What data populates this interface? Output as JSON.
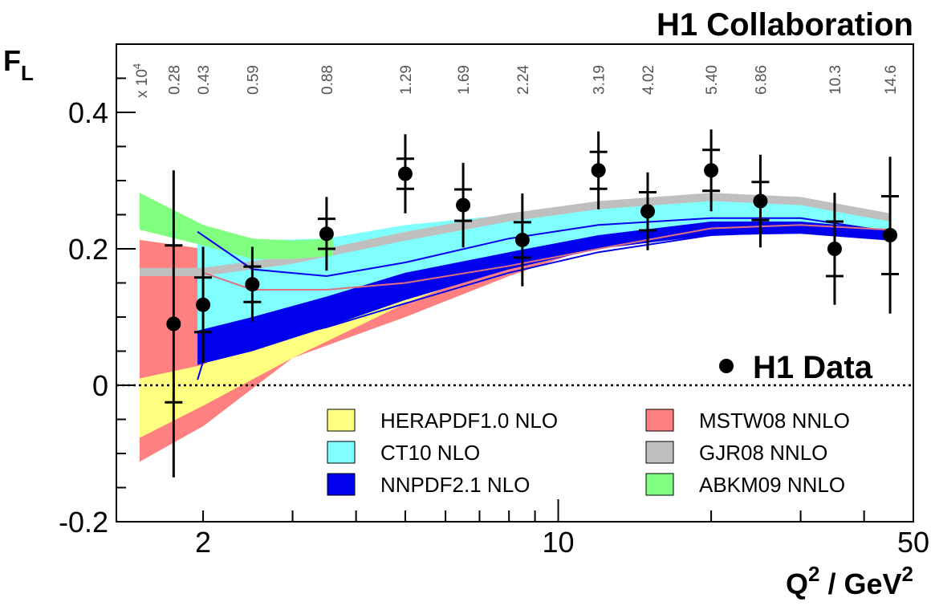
{
  "collaboration": "H1 Collaboration",
  "y_label": {
    "main": "F",
    "sub": "L"
  },
  "x_label": {
    "q": "Q",
    "q_sup": "2",
    "mid": " / GeV",
    "gev_sup": "2"
  },
  "x_scale_header": {
    "prefix": "x 10",
    "exp": "4"
  },
  "colors": {
    "HERAPDF": "#ffff80",
    "CT10": "#80ffff",
    "NNPDF": "#0000ee",
    "MSTW": "#ff8080",
    "GJR": "#bfbfbf",
    "ABKM": "#80ff80",
    "data": "#000000"
  },
  "chart_data": {
    "type": "scatter",
    "xscale": "log",
    "xlim": [
      1.35,
      50
    ],
    "ylim": [
      -0.2,
      0.5
    ],
    "grid": false,
    "xlabel": "Q^2 / GeV^2",
    "ylabel": "F_L",
    "x_ticks": [
      {
        "v": 2,
        "label": "2"
      },
      {
        "v": 10,
        "label": "10"
      },
      {
        "v": 50,
        "label": "50"
      }
    ],
    "y_ticks": [
      {
        "v": -0.2,
        "label": "-0.2"
      },
      {
        "v": 0,
        "label": "0"
      },
      {
        "v": 0.2,
        "label": "0.2"
      },
      {
        "v": 0.4,
        "label": "0.4"
      }
    ],
    "x_values_labels": [
      "0.28",
      "0.43",
      "0.59",
      "0.88",
      "1.29",
      "1.69",
      "2.24",
      "3.19",
      "4.02",
      "5.40",
      "6.86",
      "10.3",
      "14.6"
    ],
    "data_series": {
      "name": "H1 Data",
      "points": [
        {
          "q2": 1.75,
          "fl": 0.09,
          "stat": 0.115,
          "tot": 0.225
        },
        {
          "q2": 2.0,
          "fl": 0.118,
          "stat": 0.04,
          "tot": 0.085
        },
        {
          "q2": 2.5,
          "fl": 0.148,
          "stat": 0.026,
          "tot": 0.055
        },
        {
          "q2": 3.5,
          "fl": 0.222,
          "stat": 0.022,
          "tot": 0.054
        },
        {
          "q2": 5.0,
          "fl": 0.31,
          "stat": 0.022,
          "tot": 0.058
        },
        {
          "q2": 6.5,
          "fl": 0.264,
          "stat": 0.023,
          "tot": 0.062
        },
        {
          "q2": 8.5,
          "fl": 0.213,
          "stat": 0.026,
          "tot": 0.068
        },
        {
          "q2": 12.0,
          "fl": 0.315,
          "stat": 0.027,
          "tot": 0.057
        },
        {
          "q2": 15.0,
          "fl": 0.255,
          "stat": 0.028,
          "tot": 0.057
        },
        {
          "q2": 20.0,
          "fl": 0.315,
          "stat": 0.03,
          "tot": 0.06
        },
        {
          "q2": 25.0,
          "fl": 0.27,
          "stat": 0.028,
          "tot": 0.068
        },
        {
          "q2": 35.0,
          "fl": 0.2,
          "stat": 0.04,
          "tot": 0.082
        },
        {
          "q2": 45.0,
          "fl": 0.22,
          "stat": 0.057,
          "tot": 0.115
        }
      ]
    },
    "bands": [
      {
        "name": "MSTW08 NNLO",
        "color": "#ff8080",
        "x": [
          1.5,
          2.0,
          3.0,
          5.0,
          8.0,
          12.0,
          20.0,
          30.0,
          45.0
        ],
        "upper": [
          0.213,
          0.2,
          0.18,
          0.17,
          0.185,
          0.22,
          0.245,
          0.25,
          0.24
        ],
        "lower": [
          -0.112,
          -0.06,
          0.04,
          0.1,
          0.16,
          0.205,
          0.225,
          0.225,
          0.215
        ]
      },
      {
        "name": "HERAPDF1.0 NLO",
        "color": "#ffff80",
        "x": [
          1.5,
          2.0,
          3.0,
          5.0,
          8.0,
          12.0,
          20.0,
          30.0,
          45.0
        ],
        "upper": [
          0.01,
          0.03,
          0.1,
          0.17,
          0.21,
          0.24,
          0.265,
          0.27,
          0.245
        ],
        "lower": [
          -0.077,
          -0.03,
          0.04,
          0.12,
          0.18,
          0.22,
          0.24,
          0.24,
          0.222
        ]
      },
      {
        "name": "CT10 NLO",
        "color": "#80ffff",
        "x": [
          1.95,
          2.5,
          3.5,
          5.0,
          8.0,
          12.0,
          20.0,
          30.0,
          45.0
        ],
        "upper": [
          0.225,
          0.212,
          0.215,
          0.235,
          0.25,
          0.265,
          0.27,
          0.265,
          0.25
        ],
        "lower": [
          0.05,
          0.07,
          0.1,
          0.14,
          0.18,
          0.215,
          0.235,
          0.235,
          0.222
        ]
      },
      {
        "name": "NNPDF2.1 NLO",
        "color": "#0000ee",
        "x": [
          1.95,
          2.5,
          3.5,
          5.0,
          8.0,
          12.0,
          20.0,
          30.0,
          45.0
        ],
        "upper": [
          0.08,
          0.1,
          0.13,
          0.165,
          0.195,
          0.22,
          0.24,
          0.24,
          0.228
        ],
        "lower": [
          0.03,
          0.05,
          0.085,
          0.125,
          0.17,
          0.2,
          0.22,
          0.222,
          0.212
        ]
      },
      {
        "name": "GJR08 NNLO",
        "color": "#bfbfbf",
        "x": [
          1.5,
          2.0,
          3.0,
          5.0,
          8.0,
          12.0,
          20.0,
          30.0,
          45.0
        ],
        "upper": [
          0.172,
          0.172,
          0.19,
          0.225,
          0.252,
          0.27,
          0.282,
          0.276,
          0.252
        ],
        "lower": [
          0.16,
          0.16,
          0.178,
          0.212,
          0.24,
          0.258,
          0.27,
          0.264,
          0.24
        ]
      },
      {
        "name": "ABKM09 NNLO",
        "color": "#80ff80",
        "x": [
          1.5,
          2.0,
          2.5,
          3.0,
          3.6
        ],
        "upper": [
          0.282,
          0.235,
          0.215,
          0.212,
          0.215
        ],
        "lower": [
          0.228,
          0.205,
          0.185,
          0.185,
          0.19
        ]
      }
    ],
    "lines": [
      {
        "name": "NNPDF2.1 NLO central",
        "color": "#0000ee",
        "x": [
          1.95,
          2.5,
          3.5,
          5.0,
          8.0,
          12.0,
          20.0,
          30.0,
          45.0
        ],
        "y": [
          0.225,
          0.17,
          0.16,
          0.18,
          0.215,
          0.235,
          0.245,
          0.245,
          0.225
        ]
      },
      {
        "name": "NNPDF2.1 NLO lower",
        "color": "#0000ee",
        "x": [
          1.95,
          2.0,
          2.5,
          3.5,
          5.0,
          8.0,
          12.0,
          20.0,
          30.0,
          45.0
        ],
        "y": [
          0.008,
          0.035,
          0.06,
          0.085,
          0.12,
          0.165,
          0.195,
          0.22,
          0.225,
          0.215
        ]
      },
      {
        "name": "MSTW08 NNLO central",
        "color": "#e07080",
        "x": [
          2.0,
          2.5,
          3.5,
          5.0,
          8.0,
          12.0,
          20.0,
          30.0,
          45.0
        ],
        "y": [
          0.165,
          0.14,
          0.14,
          0.15,
          0.175,
          0.2,
          0.23,
          0.235,
          0.228
        ]
      }
    ],
    "legend": [
      {
        "label": "HERAPDF1.0 NLO",
        "color": "#ffff80"
      },
      {
        "label": "MSTW08 NNLO",
        "color": "#ff8080"
      },
      {
        "label": "CT10 NLO",
        "color": "#80ffff"
      },
      {
        "label": "GJR08 NNLO",
        "color": "#bfbfbf"
      },
      {
        "label": "NNPDF2.1 NLO",
        "color": "#0000ee"
      },
      {
        "label": "ABKM09 NNLO",
        "color": "#80ff80"
      }
    ]
  }
}
